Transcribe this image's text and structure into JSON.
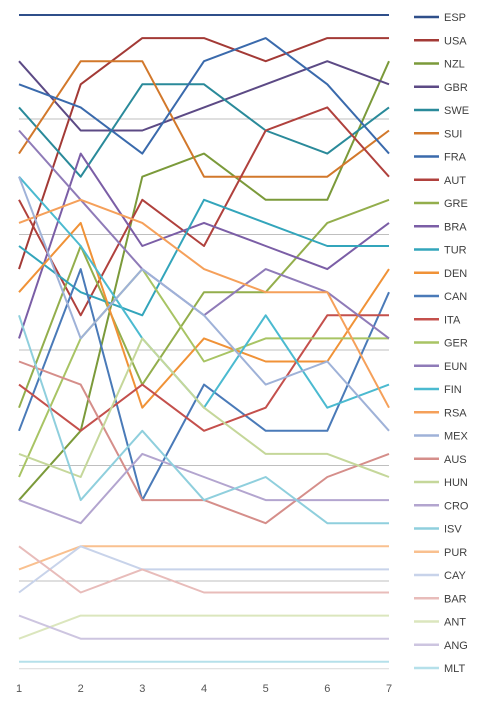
{
  "chart_data": {
    "type": "line",
    "title": "",
    "xlabel": "",
    "ylabel": "",
    "x": [
      1,
      2,
      3,
      4,
      5,
      6,
      7
    ],
    "grid": true,
    "legend_position": "right",
    "series": [
      {
        "name": "ESP",
        "color": "#2f4f8a",
        "values": [
          1,
          1,
          1,
          1,
          1,
          1,
          1
        ]
      },
      {
        "name": "USA",
        "color": "#a33a36",
        "values": [
          12,
          4,
          2,
          2,
          3,
          2,
          2
        ]
      },
      {
        "name": "NZL",
        "color": "#7b9a3a",
        "values": [
          22,
          19,
          8,
          7,
          9,
          9,
          3
        ]
      },
      {
        "name": "GBR",
        "color": "#5c4a85",
        "values": [
          3,
          6,
          6,
          5,
          4,
          3,
          4
        ]
      },
      {
        "name": "SWE",
        "color": "#2a8a9a",
        "values": [
          5,
          8,
          4,
          4,
          6,
          7,
          5
        ]
      },
      {
        "name": "SUI",
        "color": "#d2782b",
        "values": [
          7,
          3,
          3,
          8,
          8,
          8,
          6
        ]
      },
      {
        "name": "FRA",
        "color": "#3a6aac",
        "values": [
          4,
          5,
          7,
          3,
          2,
          4,
          7
        ]
      },
      {
        "name": "AUT",
        "color": "#b0413d",
        "values": [
          9,
          14,
          9,
          11,
          6,
          5,
          8
        ]
      },
      {
        "name": "GRE",
        "color": "#93ae4c",
        "values": [
          18,
          11,
          17,
          13,
          13,
          10,
          9
        ]
      },
      {
        "name": "BRA",
        "color": "#7b5ea6",
        "values": [
          15,
          7,
          11,
          10,
          11,
          12,
          10
        ]
      },
      {
        "name": "TUR",
        "color": "#33a5bb",
        "values": [
          11,
          13,
          14,
          9,
          10,
          11,
          11
        ]
      },
      {
        "name": "DEN",
        "color": "#f09237",
        "values": [
          13,
          10,
          18,
          15,
          16,
          16,
          12
        ]
      },
      {
        "name": "CAN",
        "color": "#4a7ab8",
        "values": [
          19,
          12,
          22,
          17,
          19,
          19,
          13
        ]
      },
      {
        "name": "ITA",
        "color": "#c4504c",
        "values": [
          17,
          19,
          17,
          19,
          18,
          14,
          14
        ]
      },
      {
        "name": "GER",
        "color": "#a8c464",
        "values": [
          21,
          15,
          12,
          16,
          15,
          15,
          15
        ]
      },
      {
        "name": "EUN",
        "color": "#8f7bb8",
        "values": [
          6,
          9,
          12,
          14,
          12,
          13,
          15
        ]
      },
      {
        "name": "FIN",
        "color": "#4bbad0",
        "values": [
          8,
          11,
          15,
          18,
          14,
          18,
          17
        ]
      },
      {
        "name": "RSA",
        "color": "#f5a05a",
        "values": [
          10,
          9,
          10,
          12,
          13,
          13,
          18
        ]
      },
      {
        "name": "MEX",
        "color": "#9fb2d8",
        "values": [
          8,
          15,
          12,
          14,
          17,
          16,
          19
        ]
      },
      {
        "name": "AUS",
        "color": "#d58e8a",
        "values": [
          16,
          17,
          22,
          22,
          23,
          21,
          20
        ]
      },
      {
        "name": "HUN",
        "color": "#c5d79a",
        "values": [
          20,
          21,
          15,
          18,
          20,
          20,
          21
        ]
      },
      {
        "name": "CRO",
        "color": "#b3a5cf",
        "values": [
          22,
          23,
          20,
          21,
          22,
          22,
          22
        ]
      },
      {
        "name": "ISV",
        "color": "#8fcfdd",
        "values": [
          14,
          22,
          19,
          22,
          21,
          23,
          23
        ]
      },
      {
        "name": "PUR",
        "color": "#f9c08f",
        "values": [
          25,
          24,
          24,
          24,
          24,
          24,
          24
        ]
      },
      {
        "name": "CAY",
        "color": "#c8d3ea",
        "values": [
          26,
          24,
          25,
          25,
          25,
          25,
          25
        ]
      },
      {
        "name": "BAR",
        "color": "#e8bcba",
        "values": [
          24,
          26,
          25,
          26,
          26,
          26,
          26
        ]
      },
      {
        "name": "ANT",
        "color": "#dbe6bd",
        "values": [
          28,
          27,
          27,
          27,
          27,
          27,
          27
        ]
      },
      {
        "name": "ANG",
        "color": "#cdc5e0",
        "values": [
          27,
          28,
          28,
          28,
          28,
          28,
          28
        ]
      },
      {
        "name": "MLT",
        "color": "#b5e0ea",
        "values": [
          29,
          29,
          29,
          29,
          29,
          29,
          29
        ]
      }
    ]
  }
}
